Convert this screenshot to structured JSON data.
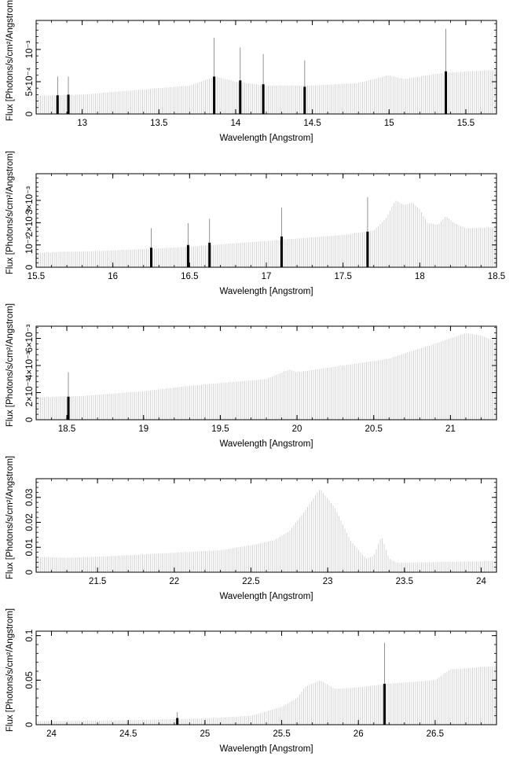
{
  "figure": {
    "colors": {
      "spectrum": "#d0d0d0",
      "feature": "#000000",
      "axis": "#000000",
      "background": "#ffffff"
    }
  },
  "chart_data": [
    {
      "type": "bar",
      "title": "",
      "xlabel": "Wavelength [Angstrom]",
      "ylabel": "Flux [Photons/s/cm²/Angstrom]",
      "xlim": [
        12.7,
        15.7
      ],
      "ylim": [
        0,
        0.00145
      ],
      "grid": false,
      "x_ticks": [
        {
          "value": 13,
          "label": "13"
        },
        {
          "value": 13.5,
          "label": "13.5"
        },
        {
          "value": 14,
          "label": "14"
        },
        {
          "value": 14.5,
          "label": "14.5"
        },
        {
          "value": 15,
          "label": "15"
        },
        {
          "value": 15.5,
          "label": "15.5"
        }
      ],
      "y_ticks": [
        {
          "value": 0,
          "label": "0"
        },
        {
          "value": 0.0005,
          "label": "5×10⁻⁴"
        },
        {
          "value": 0.001,
          "label": "10⁻³"
        }
      ],
      "continuum": [
        [
          12.7,
          0.00028
        ],
        [
          13.0,
          0.0003
        ],
        [
          13.4,
          0.00038
        ],
        [
          13.7,
          0.00044
        ],
        [
          13.87,
          0.00058
        ],
        [
          14.0,
          0.0005
        ],
        [
          14.2,
          0.00044
        ],
        [
          14.5,
          0.00044
        ],
        [
          14.8,
          0.00048
        ],
        [
          15.0,
          0.0006
        ],
        [
          15.1,
          0.00054
        ],
        [
          15.3,
          0.00062
        ],
        [
          15.5,
          0.00066
        ],
        [
          15.7,
          0.00068
        ]
      ],
      "features": [
        {
          "x": 12.84,
          "y": 0.00029,
          "error_upper": 0.00058
        },
        {
          "x": 12.91,
          "y": 0.0003,
          "error_upper": 0.00058
        },
        {
          "x": 13.86,
          "y": 0.00058,
          "error_upper": 0.00118
        },
        {
          "x": 14.03,
          "y": 0.00052,
          "error_upper": 0.00103
        },
        {
          "x": 14.18,
          "y": 0.00046,
          "error_upper": 0.00093
        },
        {
          "x": 14.45,
          "y": 0.00042,
          "error_upper": 0.00083
        },
        {
          "x": 15.37,
          "y": 0.00066,
          "error_upper": 0.00132
        }
      ]
    },
    {
      "type": "bar",
      "title": "",
      "xlabel": "Wavelength [Angstrom]",
      "ylabel": "Flux [Photons/s/cm²/Angstrom]",
      "xlim": [
        15.5,
        18.5
      ],
      "ylim": [
        0,
        0.0042
      ],
      "grid": false,
      "x_ticks": [
        {
          "value": 15.5,
          "label": "15.5"
        },
        {
          "value": 16,
          "label": "16"
        },
        {
          "value": 16.5,
          "label": "16.5"
        },
        {
          "value": 17,
          "label": "17"
        },
        {
          "value": 17.5,
          "label": "17.5"
        },
        {
          "value": 18,
          "label": "18"
        },
        {
          "value": 18.5,
          "label": "18.5"
        }
      ],
      "y_ticks": [
        {
          "value": 0,
          "label": "0"
        },
        {
          "value": 0.001,
          "label": "10⁻³"
        },
        {
          "value": 0.002,
          "label": "2×10⁻³"
        },
        {
          "value": 0.003,
          "label": "3×10⁻³"
        }
      ],
      "continuum": [
        [
          15.5,
          0.00065
        ],
        [
          16.0,
          0.00075
        ],
        [
          16.5,
          0.00092
        ],
        [
          17.0,
          0.00118
        ],
        [
          17.5,
          0.00145
        ],
        [
          17.7,
          0.00165
        ],
        [
          17.78,
          0.0022
        ],
        [
          17.84,
          0.003
        ],
        [
          17.9,
          0.0028
        ],
        [
          17.95,
          0.0029
        ],
        [
          18.0,
          0.0026
        ],
        [
          18.05,
          0.002
        ],
        [
          18.12,
          0.0019
        ],
        [
          18.17,
          0.0023
        ],
        [
          18.22,
          0.002
        ],
        [
          18.3,
          0.00175
        ],
        [
          18.5,
          0.0018
        ]
      ],
      "features": [
        {
          "x": 16.25,
          "y": 0.00088,
          "error_upper": 0.00175
        },
        {
          "x": 16.49,
          "y": 0.001,
          "error_upper": 0.00198
        },
        {
          "x": 16.63,
          "y": 0.0011,
          "error_upper": 0.00218
        },
        {
          "x": 17.1,
          "y": 0.00138,
          "error_upper": 0.00268
        },
        {
          "x": 17.66,
          "y": 0.0016,
          "error_upper": 0.00315
        }
      ]
    },
    {
      "type": "bar",
      "title": "",
      "xlabel": "Wavelength [Angstrom]",
      "ylabel": "Flux [Photons/s/cm²/Angstrom]",
      "xlim": [
        18.3,
        21.3
      ],
      "ylim": [
        0,
        0.0069
      ],
      "grid": false,
      "x_ticks": [
        {
          "value": 18.5,
          "label": "18.5"
        },
        {
          "value": 19,
          "label": "19"
        },
        {
          "value": 19.5,
          "label": "19.5"
        },
        {
          "value": 20,
          "label": "20"
        },
        {
          "value": 20.5,
          "label": "20.5"
        },
        {
          "value": 21,
          "label": "21"
        }
      ],
      "y_ticks": [
        {
          "value": 0,
          "label": "0"
        },
        {
          "value": 0.002,
          "label": "2×10⁻³"
        },
        {
          "value": 0.004,
          "label": "4×10⁻³"
        },
        {
          "value": 0.006,
          "label": "6×10⁻³"
        }
      ],
      "continuum": [
        [
          18.3,
          0.00165
        ],
        [
          18.6,
          0.00175
        ],
        [
          19.0,
          0.0021
        ],
        [
          19.3,
          0.0025
        ],
        [
          19.5,
          0.0027
        ],
        [
          19.8,
          0.003
        ],
        [
          19.95,
          0.0037
        ],
        [
          20.0,
          0.0035
        ],
        [
          20.3,
          0.004
        ],
        [
          20.6,
          0.0045
        ],
        [
          20.7,
          0.0049
        ],
        [
          20.9,
          0.0056
        ],
        [
          21.0,
          0.006
        ],
        [
          21.1,
          0.0064
        ],
        [
          21.2,
          0.0062
        ],
        [
          21.3,
          0.0058
        ]
      ],
      "features": [
        {
          "x": 18.51,
          "y": 0.0017,
          "error_upper": 0.0035
        }
      ]
    },
    {
      "type": "bar",
      "title": "",
      "xlabel": "Wavelength [Angstrom]",
      "ylabel": "Flux [Photons/s/cm²/Angstrom]",
      "xlim": [
        21.1,
        24.1
      ],
      "ylim": [
        0,
        0.0375
      ],
      "grid": false,
      "x_ticks": [
        {
          "value": 21.5,
          "label": "21.5"
        },
        {
          "value": 22,
          "label": "22"
        },
        {
          "value": 22.5,
          "label": "22.5"
        },
        {
          "value": 23,
          "label": "23"
        },
        {
          "value": 23.5,
          "label": "23.5"
        },
        {
          "value": 24,
          "label": "24"
        }
      ],
      "y_ticks": [
        {
          "value": 0,
          "label": "0"
        },
        {
          "value": 0.01,
          "label": "0.01"
        },
        {
          "value": 0.02,
          "label": "0.02"
        },
        {
          "value": 0.03,
          "label": "0.03"
        }
      ],
      "continuum": [
        [
          21.1,
          0.0062
        ],
        [
          21.3,
          0.0058
        ],
        [
          21.5,
          0.0062
        ],
        [
          22.0,
          0.0078
        ],
        [
          22.3,
          0.0088
        ],
        [
          22.5,
          0.0108
        ],
        [
          22.65,
          0.0128
        ],
        [
          22.75,
          0.0165
        ],
        [
          22.85,
          0.0245
        ],
        [
          22.95,
          0.0335
        ],
        [
          23.05,
          0.0255
        ],
        [
          23.15,
          0.0125
        ],
        [
          23.25,
          0.0055
        ],
        [
          23.3,
          0.0065
        ],
        [
          23.35,
          0.0145
        ],
        [
          23.4,
          0.0055
        ],
        [
          23.45,
          0.0038
        ],
        [
          24.1,
          0.0045
        ]
      ],
      "features": []
    },
    {
      "type": "bar",
      "title": "",
      "xlabel": "Wavelength [Angstrom]",
      "ylabel": "Flux [Photons/s/cm²/Angstrom]",
      "xlim": [
        23.9,
        26.9
      ],
      "ylim": [
        0,
        0.105
      ],
      "grid": false,
      "x_ticks": [
        {
          "value": 24,
          "label": "24"
        },
        {
          "value": 24.5,
          "label": "24.5"
        },
        {
          "value": 25,
          "label": "25"
        },
        {
          "value": 25.5,
          "label": "25.5"
        },
        {
          "value": 26,
          "label": "26"
        },
        {
          "value": 26.5,
          "label": "26.5"
        }
      ],
      "y_ticks": [
        {
          "value": 0,
          "label": "0"
        },
        {
          "value": 0.05,
          "label": "0.05"
        },
        {
          "value": 0.1,
          "label": "0.1"
        }
      ],
      "continuum": [
        [
          23.9,
          0.004
        ],
        [
          24.5,
          0.005
        ],
        [
          25.0,
          0.007
        ],
        [
          25.3,
          0.01
        ],
        [
          25.5,
          0.02
        ],
        [
          25.6,
          0.03
        ],
        [
          25.65,
          0.042
        ],
        [
          25.75,
          0.05
        ],
        [
          25.85,
          0.04
        ],
        [
          26.0,
          0.042
        ],
        [
          26.2,
          0.046
        ],
        [
          26.5,
          0.05
        ],
        [
          26.6,
          0.062
        ],
        [
          26.9,
          0.066
        ]
      ],
      "features": [
        {
          "x": 24.82,
          "y": 0.0075,
          "error_upper": 0.014
        },
        {
          "x": 26.17,
          "y": 0.046,
          "error_upper": 0.092
        }
      ]
    }
  ]
}
